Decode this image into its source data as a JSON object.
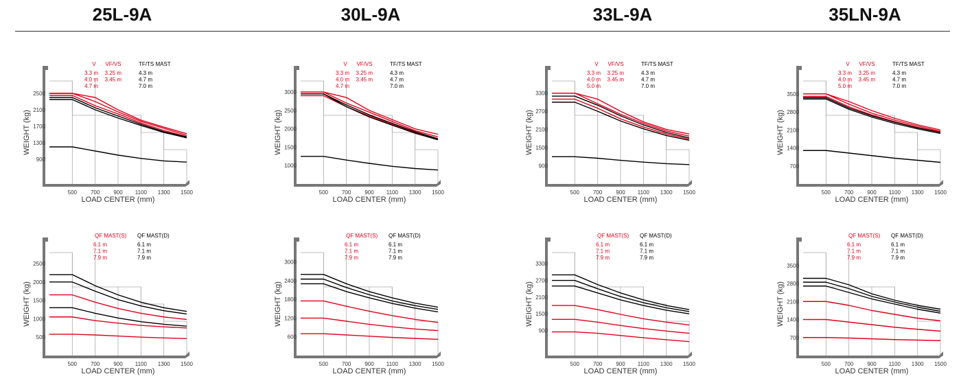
{
  "models": [
    "25L-9A",
    "30L-9A",
    "33L-9A",
    "35LN-9A"
  ],
  "colors": {
    "red": "#e2001a",
    "black": "#000000",
    "grid": "#aaaaaa",
    "frame": "#777777"
  },
  "chart_data": [
    {
      "type": "line",
      "model": "25L-9A",
      "mast_group": "V / VF/VS / TF/TS MAST",
      "xlabel": "LOAD CENTER (mm)",
      "ylabel": "WEIGHT (kg)",
      "x": [
        500,
        700,
        900,
        1100,
        1300,
        1500
      ],
      "xticks": [
        "500",
        "700",
        "900",
        "1100",
        "1300",
        "1500"
      ],
      "yticks": [
        "900",
        "1300",
        "1700",
        "2100",
        "2500"
      ],
      "ylim": [
        300,
        2800
      ],
      "legend_columns": [
        {
          "header": "V",
          "color": "#e2001a",
          "entries": [
            "3.3 m",
            "4.0 m",
            "4.7 m"
          ]
        },
        {
          "header": "VF/VS",
          "color": "#e2001a",
          "entries": [
            "3.25 m",
            "3.45 m"
          ]
        },
        {
          "header": "TF/TS MAST",
          "color": "#000000",
          "entries": [
            "4.3 m",
            "4.7 m",
            "7.0 m"
          ]
        }
      ],
      "series": [
        {
          "color": "red",
          "values": [
            2500,
            2400,
            2100,
            1850,
            1680,
            1520
          ]
        },
        {
          "color": "red",
          "values": [
            2500,
            2300,
            2050,
            1820,
            1650,
            1480
          ]
        },
        {
          "color": "red",
          "values": [
            2450,
            2200,
            2000,
            1780,
            1600,
            1450
          ]
        },
        {
          "color": "black",
          "values": [
            2400,
            2150,
            1950,
            1750,
            1570,
            1440
          ]
        },
        {
          "color": "black",
          "values": [
            2350,
            2100,
            1900,
            1720,
            1550,
            1420
          ]
        },
        {
          "color": "black",
          "values": [
            1200,
            1100,
            1000,
            920,
            860,
            830
          ]
        }
      ]
    },
    {
      "type": "line",
      "model": "30L-9A",
      "mast_group": "V / VF/VS / TF/TS MAST",
      "xlabel": "LOAD CENTER (mm)",
      "ylabel": "WEIGHT (kg)",
      "x": [
        500,
        700,
        900,
        1100,
        1300,
        1500
      ],
      "xticks": [
        "500",
        "700",
        "900",
        "1100",
        "1300",
        "1500"
      ],
      "yticks": [
        "1000",
        "1500",
        "2000",
        "2500",
        "3000"
      ],
      "ylim": [
        500,
        3300
      ],
      "legend_columns": [
        {
          "header": "V",
          "color": "#e2001a",
          "entries": [
            "3.3 m",
            "4.0 m",
            "4.7 m"
          ]
        },
        {
          "header": "VF/VS",
          "color": "#e2001a",
          "entries": [
            "3.25 m",
            "3.45 m"
          ]
        },
        {
          "header": "TF/TS MAST",
          "color": "#000000",
          "entries": [
            "4.3 m",
            "4.7 m",
            "7.0 m"
          ]
        }
      ],
      "series": [
        {
          "color": "red",
          "values": [
            3000,
            2850,
            2500,
            2250,
            2000,
            1850
          ]
        },
        {
          "color": "red",
          "values": [
            3000,
            2700,
            2450,
            2200,
            1950,
            1780
          ]
        },
        {
          "color": "red",
          "values": [
            2900,
            2600,
            2350,
            2120,
            1900,
            1720
          ]
        },
        {
          "color": "black",
          "values": [
            2950,
            2650,
            2380,
            2150,
            1920,
            1730
          ]
        },
        {
          "color": "black",
          "values": [
            2950,
            2600,
            2320,
            2100,
            1880,
            1700
          ]
        },
        {
          "color": "black",
          "values": [
            1250,
            1150,
            1060,
            980,
            920,
            880
          ]
        }
      ]
    },
    {
      "type": "line",
      "model": "33L-9A",
      "mast_group": "V / VF/VS / TF/TS MAST",
      "xlabel": "LOAD CENTER (mm)",
      "ylabel": "WEIGHT (kg)",
      "x": [
        500,
        700,
        900,
        1100,
        1300,
        1500
      ],
      "xticks": [
        "500",
        "700",
        "900",
        "1100",
        "1300",
        "1500"
      ],
      "yticks": [
        "900",
        "1500",
        "2100",
        "2700",
        "3300"
      ],
      "ylim": [
        300,
        3700
      ],
      "legend_columns": [
        {
          "header": "V",
          "color": "#e2001a",
          "entries": [
            "3.3 m",
            "4.0 m",
            "5.0 m"
          ]
        },
        {
          "header": "VF/VS",
          "color": "#e2001a",
          "entries": [
            "3.25 m",
            "3.45 m"
          ]
        },
        {
          "header": "TF/TS MAST",
          "color": "#000000",
          "entries": [
            "4.3 m",
            "4.7 m",
            "7.0 m"
          ]
        }
      ],
      "series": [
        {
          "color": "red",
          "values": [
            3300,
            3100,
            2700,
            2350,
            2100,
            1950
          ]
        },
        {
          "color": "red",
          "values": [
            3300,
            2950,
            2600,
            2300,
            2050,
            1880
          ]
        },
        {
          "color": "black",
          "values": [
            3200,
            2900,
            2550,
            2250,
            2000,
            1820
          ]
        },
        {
          "color": "red",
          "values": [
            3100,
            2800,
            2450,
            2180,
            1950,
            1780
          ]
        },
        {
          "color": "black",
          "values": [
            3000,
            2700,
            2380,
            2120,
            1900,
            1740
          ]
        },
        {
          "color": "black",
          "values": [
            1200,
            1150,
            1080,
            1020,
            970,
            940
          ]
        }
      ]
    },
    {
      "type": "line",
      "model": "35LN-9A",
      "mast_group": "V / VF/VS / TF/TS MAST",
      "xlabel": "LOAD CENTER (mm)",
      "ylabel": "WEIGHT (kg)",
      "x": [
        500,
        700,
        900,
        1100,
        1300,
        1500
      ],
      "xticks": [
        "500",
        "700",
        "900",
        "1100",
        "1300",
        "1500"
      ],
      "yticks": [
        "700",
        "1400",
        "2100",
        "2800",
        "3500"
      ],
      "ylim": [
        0,
        4000
      ],
      "legend_columns": [
        {
          "header": "V",
          "color": "#e2001a",
          "entries": [
            "3.3 m",
            "4.0 m",
            "5.0 m"
          ]
        },
        {
          "header": "VF/VS",
          "color": "#e2001a",
          "entries": [
            "3.25 m",
            "3.45 m"
          ]
        },
        {
          "header": "TF/TS MAST",
          "color": "#000000",
          "entries": [
            "4.3 m",
            "4.7 m",
            "7.0 m"
          ]
        }
      ],
      "series": [
        {
          "color": "red",
          "values": [
            3500,
            3200,
            2850,
            2550,
            2300,
            2100
          ]
        },
        {
          "color": "red",
          "values": [
            3500,
            3100,
            2750,
            2480,
            2250,
            2050
          ]
        },
        {
          "color": "red",
          "values": [
            3400,
            3000,
            2680,
            2420,
            2200,
            2020
          ]
        },
        {
          "color": "black",
          "values": [
            3350,
            2950,
            2650,
            2400,
            2180,
            2000
          ]
        },
        {
          "color": "black",
          "values": [
            3300,
            2900,
            2600,
            2350,
            2140,
            1960
          ]
        },
        {
          "color": "black",
          "values": [
            1300,
            1200,
            1100,
            1000,
            920,
            840
          ]
        }
      ]
    },
    {
      "type": "line",
      "model": "25L-9A",
      "mast_group": "QF MAST",
      "xlabel": "LOAD CENTER (mm)",
      "ylabel": "WEIGHT (kg)",
      "x": [
        500,
        700,
        900,
        1100,
        1300,
        1500
      ],
      "xticks": [
        "500",
        "700",
        "900",
        "1100",
        "1300",
        "1500"
      ],
      "yticks": [
        "500",
        "1000",
        "1500",
        "2000",
        "2500"
      ],
      "ylim": [
        0,
        2800
      ],
      "legend_columns": [
        {
          "header": "QF MAST(S)",
          "color": "#e2001a",
          "entries": [
            "6.1 m",
            "7.1 m",
            "7.9 m"
          ]
        },
        {
          "header": "QF MAST(D)",
          "color": "#000000",
          "entries": [
            "6.1 m",
            "7.1 m",
            "7.9 m"
          ]
        }
      ],
      "series": [
        {
          "color": "black",
          "values": [
            2200,
            1900,
            1650,
            1450,
            1300,
            1200
          ]
        },
        {
          "color": "black",
          "values": [
            2000,
            1750,
            1520,
            1350,
            1220,
            1130
          ]
        },
        {
          "color": "red",
          "values": [
            1650,
            1450,
            1280,
            1150,
            1050,
            980
          ]
        },
        {
          "color": "black",
          "values": [
            1300,
            1150,
            1020,
            920,
            850,
            800
          ]
        },
        {
          "color": "red",
          "values": [
            1050,
            950,
            880,
            820,
            780,
            750
          ]
        },
        {
          "color": "red",
          "values": [
            580,
            560,
            530,
            500,
            480,
            460
          ]
        }
      ]
    },
    {
      "type": "line",
      "model": "30L-9A",
      "mast_group": "QF MAST",
      "xlabel": "LOAD CENTER (mm)",
      "ylabel": "WEIGHT (kg)",
      "x": [
        500,
        700,
        900,
        1100,
        1300,
        1500
      ],
      "xticks": [
        "500",
        "700",
        "900",
        "1100",
        "1300",
        "1500"
      ],
      "yticks": [
        "600",
        "1200",
        "1800",
        "2400",
        "3000"
      ],
      "ylim": [
        0,
        3300
      ],
      "legend_columns": [
        {
          "header": "QF MAST(S)",
          "color": "#e2001a",
          "entries": [
            "6.1 m",
            "7.1 m",
            "7.9 m"
          ]
        },
        {
          "header": "QF MAST(D)",
          "color": "#000000",
          "entries": [
            "6.1 m",
            "7.1 m",
            "7.9 m"
          ]
        }
      ],
      "series": [
        {
          "color": "black",
          "values": [
            2600,
            2300,
            2050,
            1850,
            1680,
            1550
          ]
        },
        {
          "color": "black",
          "values": [
            2450,
            2180,
            1950,
            1750,
            1600,
            1480
          ]
        },
        {
          "color": "black",
          "values": [
            2300,
            2050,
            1850,
            1670,
            1520,
            1400
          ]
        },
        {
          "color": "red",
          "values": [
            1750,
            1580,
            1420,
            1280,
            1160,
            1060
          ]
        },
        {
          "color": "red",
          "values": [
            1200,
            1100,
            1000,
            920,
            850,
            800
          ]
        },
        {
          "color": "red",
          "values": [
            700,
            660,
            620,
            580,
            550,
            520
          ]
        }
      ]
    },
    {
      "type": "line",
      "model": "33L-9A",
      "mast_group": "QF MAST",
      "xlabel": "LOAD CENTER (mm)",
      "ylabel": "WEIGHT (kg)",
      "x": [
        500,
        700,
        900,
        1100,
        1300,
        1500
      ],
      "xticks": [
        "500",
        "700",
        "900",
        "1100",
        "1300",
        "1500"
      ],
      "yticks": [
        "900",
        "1500",
        "2100",
        "2700",
        "3300"
      ],
      "ylim": [
        0,
        3700
      ],
      "legend_columns": [
        {
          "header": "QF MAST(S)",
          "color": "#e2001a",
          "entries": [
            "6.1 m",
            "7.1 m",
            "7.9 m"
          ]
        },
        {
          "header": "QF MAST(D)",
          "color": "#000000",
          "entries": [
            "6.1 m",
            "7.1 m",
            "7.9 m"
          ]
        }
      ],
      "series": [
        {
          "color": "black",
          "values": [
            2900,
            2550,
            2250,
            2000,
            1800,
            1650
          ]
        },
        {
          "color": "black",
          "values": [
            2700,
            2400,
            2120,
            1900,
            1720,
            1580
          ]
        },
        {
          "color": "black",
          "values": [
            2500,
            2250,
            2000,
            1800,
            1630,
            1500
          ]
        },
        {
          "color": "red",
          "values": [
            1800,
            1650,
            1480,
            1320,
            1200,
            1100
          ]
        },
        {
          "color": "red",
          "values": [
            1300,
            1200,
            1080,
            970,
            880,
            800
          ]
        },
        {
          "color": "red",
          "values": [
            850,
            800,
            720,
            640,
            570,
            500
          ]
        }
      ]
    },
    {
      "type": "line",
      "model": "35LN-9A",
      "mast_group": "QF MAST",
      "xlabel": "LOAD CENTER (mm)",
      "ylabel": "WEIGHT (kg)",
      "x": [
        500,
        700,
        900,
        1100,
        1300,
        1500
      ],
      "xticks": [
        "500",
        "700",
        "900",
        "1100",
        "1300",
        "1500"
      ],
      "yticks": [
        "700",
        "1400",
        "2100",
        "2800",
        "3500"
      ],
      "ylim": [
        0,
        4000
      ],
      "legend_columns": [
        {
          "header": "QF MAST(S)",
          "color": "#e2001a",
          "entries": [
            "6.1 m",
            "7.1 m",
            "7.9 m"
          ]
        },
        {
          "header": "QF MAST(D)",
          "color": "#000000",
          "entries": [
            "6.1 m",
            "7.1 m",
            "7.9 m"
          ]
        }
      ],
      "series": [
        {
          "color": "black",
          "values": [
            3000,
            2750,
            2400,
            2150,
            1950,
            1800
          ]
        },
        {
          "color": "black",
          "values": [
            2850,
            2600,
            2300,
            2080,
            1880,
            1720
          ]
        },
        {
          "color": "black",
          "values": [
            2700,
            2450,
            2200,
            2000,
            1800,
            1650
          ]
        },
        {
          "color": "red",
          "values": [
            2100,
            1950,
            1750,
            1600,
            1450,
            1350
          ]
        },
        {
          "color": "red",
          "values": [
            1400,
            1300,
            1200,
            1100,
            1020,
            950
          ]
        },
        {
          "color": "red",
          "values": [
            700,
            680,
            650,
            620,
            600,
            580
          ]
        }
      ]
    }
  ]
}
